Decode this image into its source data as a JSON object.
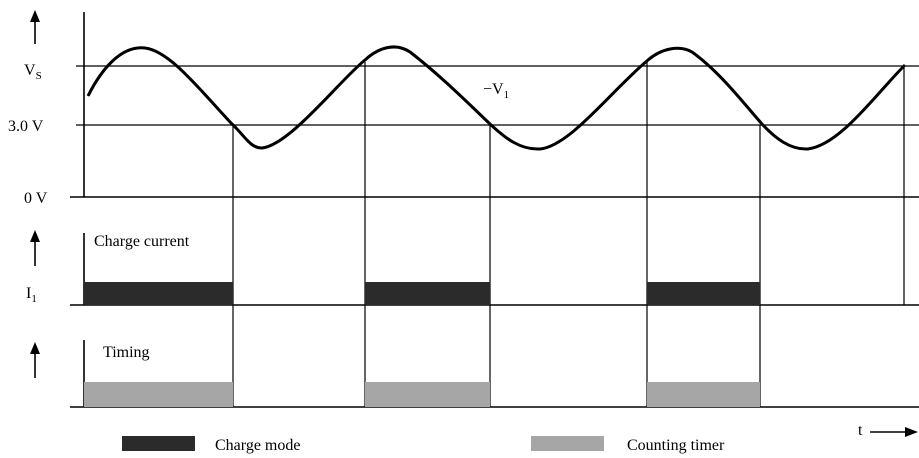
{
  "waveform_panel": {
    "vs_label_main": "V",
    "vs_label_sub": "S",
    "threshold_label": "3.0 V",
    "zero_label": "0 V",
    "signal_label": "−V",
    "signal_label_sub": "1"
  },
  "current_panel": {
    "axis_label_main": "I",
    "axis_label_sub": "1",
    "title": "Charge current"
  },
  "timing_panel": {
    "title": "Timing"
  },
  "time_axis_label": "t",
  "legend": {
    "charge_mode": "Charge mode",
    "counting_timer": "Counting timer"
  },
  "colors": {
    "charge_mode": "#2b2b2b",
    "counting_timer": "#a6a6a6",
    "line": "#000000"
  },
  "icons": [
    "up-arrow-icon",
    "right-arrow-icon"
  ]
}
